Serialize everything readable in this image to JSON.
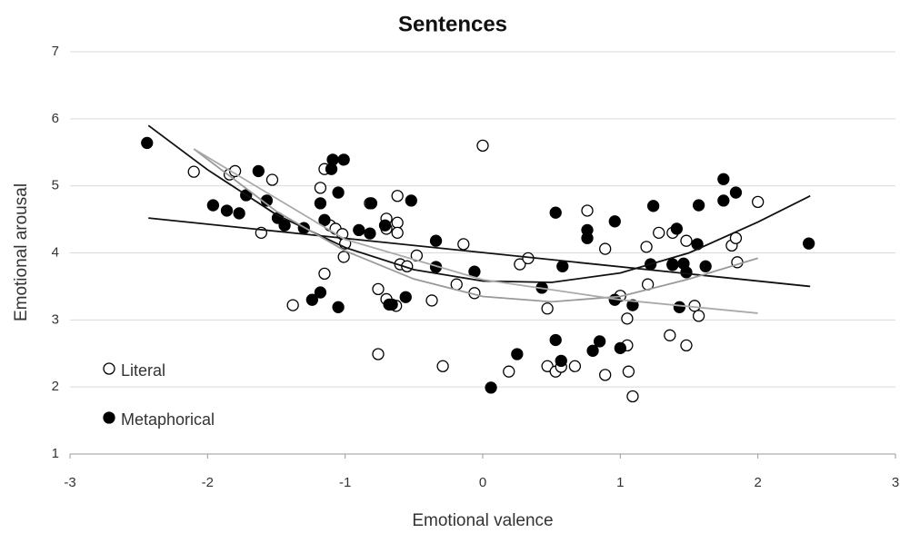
{
  "chart_data": {
    "type": "scatter",
    "title": "Sentences",
    "x_label": "Emotional valence",
    "y_label": "Emotional arousal",
    "xlim": [
      -3,
      3
    ],
    "ylim": [
      1,
      7
    ],
    "xticks": [
      -3,
      -2,
      -1,
      0,
      1,
      2,
      3
    ],
    "yticks": [
      1,
      2,
      3,
      4,
      5,
      6,
      7
    ],
    "grid": true,
    "legend": "lower left",
    "series": [
      {
        "name": "Literal",
        "marker": "open",
        "color": "#000000",
        "x": [
          -2.1,
          -1.84,
          -1.8,
          -1.61,
          -1.53,
          -1.38,
          -1.18,
          -1.15,
          -1.15,
          -1.11,
          -1.07,
          -1.02,
          -1.01,
          -1.0,
          -0.82,
          -0.76,
          -0.76,
          -0.7,
          -0.7,
          -0.7,
          -0.62,
          -0.62,
          -0.62,
          -0.6,
          -0.55,
          -0.63,
          -0.48,
          -0.37,
          -0.29,
          -0.19,
          -0.14,
          -0.06,
          0.0,
          0.19,
          0.27,
          0.33,
          0.47,
          0.47,
          0.53,
          0.57,
          0.67,
          0.76,
          0.89,
          0.89,
          1.0,
          1.05,
          1.05,
          1.06,
          1.09,
          1.19,
          1.2,
          1.28,
          1.38,
          1.36,
          1.38,
          1.48,
          1.48,
          1.54,
          1.57,
          1.81,
          1.84,
          1.85,
          2.0
        ],
        "values": [
          5.21,
          5.17,
          5.22,
          4.3,
          5.09,
          3.22,
          4.97,
          5.25,
          3.69,
          4.41,
          4.36,
          4.28,
          3.94,
          4.14,
          4.74,
          3.46,
          2.49,
          3.31,
          4.51,
          4.36,
          4.85,
          4.45,
          4.3,
          3.83,
          3.8,
          3.21,
          3.96,
          3.29,
          2.31,
          3.53,
          4.13,
          3.4,
          5.6,
          2.23,
          3.83,
          3.92,
          3.17,
          2.31,
          2.23,
          2.3,
          2.31,
          4.63,
          4.06,
          2.18,
          3.36,
          3.02,
          2.62,
          2.23,
          1.86,
          4.09,
          3.53,
          4.3,
          4.3,
          2.77,
          3.83,
          4.18,
          2.62,
          3.21,
          3.06,
          4.11,
          4.22,
          3.86,
          4.76
        ]
      },
      {
        "name": "Metaphorical",
        "marker": "filled",
        "color": "#000000",
        "x": [
          -2.44,
          -1.96,
          -1.86,
          -1.77,
          -1.72,
          -1.63,
          -1.57,
          -1.49,
          -1.44,
          -1.3,
          -1.24,
          -1.18,
          -1.18,
          -1.15,
          -1.1,
          -1.09,
          -1.01,
          -1.05,
          -1.05,
          -0.9,
          -0.82,
          -0.81,
          -0.71,
          -0.68,
          -0.66,
          -0.56,
          -0.52,
          -0.34,
          -0.34,
          -0.06,
          0.06,
          0.25,
          0.43,
          0.53,
          0.53,
          0.57,
          0.58,
          0.85,
          0.76,
          0.76,
          0.8,
          0.96,
          0.96,
          1.0,
          1.09,
          1.24,
          1.22,
          1.38,
          1.41,
          1.43,
          1.46,
          1.48,
          1.56,
          1.57,
          1.62,
          1.75,
          1.75,
          1.84,
          2.37
        ],
        "values": [
          5.64,
          4.71,
          4.63,
          4.59,
          4.86,
          5.22,
          4.78,
          4.52,
          4.41,
          4.37,
          3.3,
          3.41,
          4.74,
          4.49,
          5.25,
          5.39,
          5.39,
          4.9,
          3.19,
          4.34,
          4.29,
          4.74,
          4.41,
          3.23,
          3.23,
          3.34,
          4.78,
          4.18,
          3.79,
          3.72,
          1.99,
          2.49,
          3.48,
          4.6,
          2.7,
          2.39,
          3.8,
          2.68,
          4.34,
          4.22,
          2.54,
          4.47,
          3.3,
          2.58,
          3.22,
          4.7,
          3.83,
          3.82,
          4.36,
          3.19,
          3.84,
          3.71,
          4.13,
          4.71,
          3.8,
          5.1,
          4.78,
          4.9,
          4.14
        ]
      }
    ],
    "trendlines": [
      {
        "color": "#111111",
        "x": [
          -2.43,
          -2,
          -1.5,
          -1,
          -0.5,
          0,
          0.5,
          1,
          1.5,
          2,
          2.38
        ],
        "values": [
          5.9,
          5.24,
          4.57,
          4.08,
          3.75,
          3.58,
          3.56,
          3.7,
          4.0,
          4.46,
          4.85
        ]
      },
      {
        "color": "#111111",
        "x": [
          -2.43,
          2.38
        ],
        "values": [
          4.52,
          3.5
        ]
      },
      {
        "color": "#999999",
        "x": [
          -2.1,
          -1.5,
          -1,
          -0.5,
          0,
          0.5,
          1,
          1.5,
          2
        ],
        "values": [
          5.55,
          4.62,
          4.03,
          3.61,
          3.35,
          3.27,
          3.35,
          3.61,
          3.92
        ]
      },
      {
        "color": "#aaaaaa",
        "x": [
          -2.1,
          -1,
          0,
          1,
          2
        ],
        "values": [
          5.55,
          4.2,
          3.6,
          3.3,
          3.1
        ]
      }
    ]
  }
}
